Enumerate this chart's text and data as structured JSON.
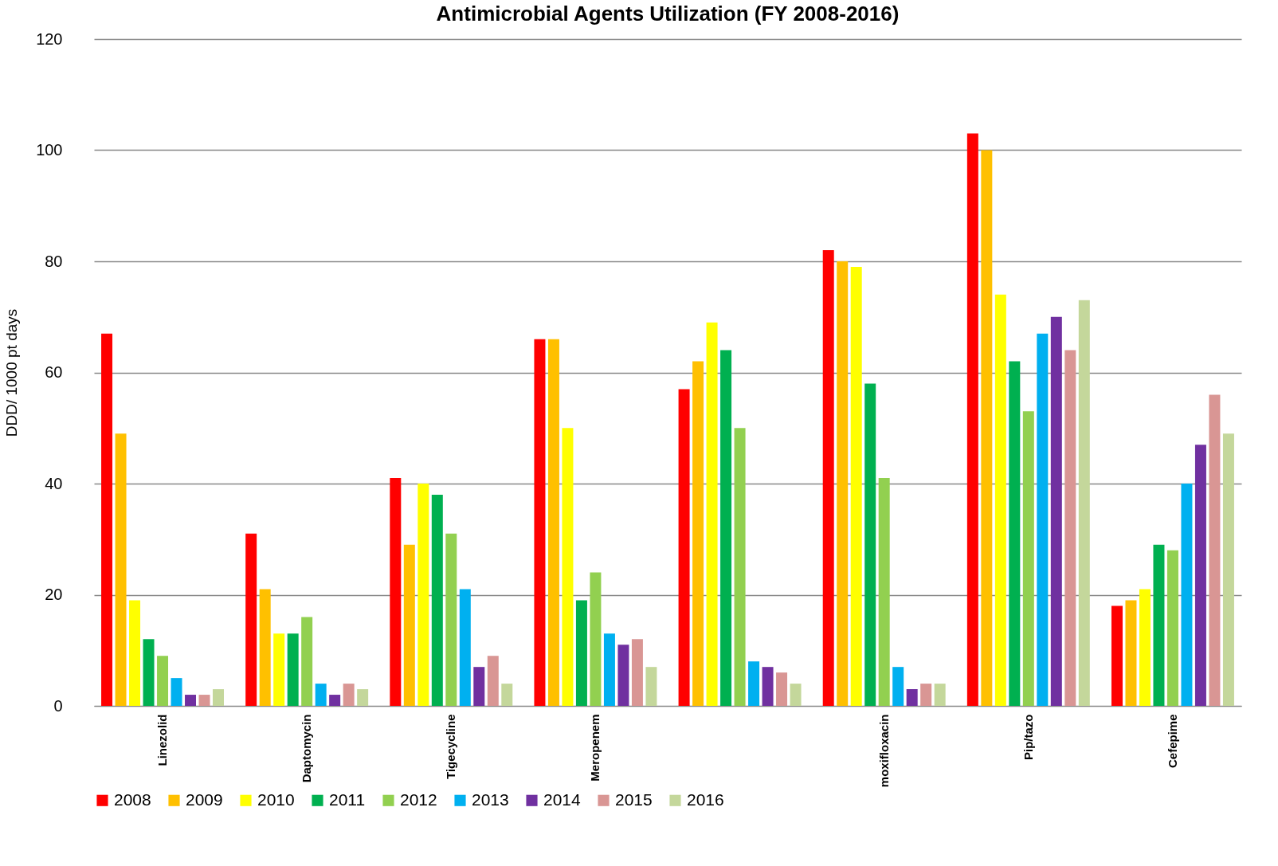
{
  "chart_data": {
    "type": "bar",
    "title": "Antimicrobial Agents Utilization (FY 2008-2016)",
    "ylabel": "DDD/ 1000 pt days",
    "categories": [
      "Linezolid",
      "Daptomycin",
      "Tigecycline",
      "Meropenem",
      null,
      "moxifloxacin",
      "Pip/tazo",
      "Cefepime"
    ],
    "series": [
      {
        "name": "2008",
        "color": "#ff0000",
        "values": [
          67,
          31,
          41,
          66,
          57,
          82,
          103,
          18
        ]
      },
      {
        "name": "2009",
        "color": "#ffc000",
        "values": [
          49,
          21,
          29,
          66,
          62,
          80,
          100,
          19
        ]
      },
      {
        "name": "2010",
        "color": "#ffff00",
        "values": [
          19,
          13,
          40,
          50,
          69,
          79,
          74,
          21
        ]
      },
      {
        "name": "2011",
        "color": "#00b050",
        "values": [
          12,
          13,
          38,
          19,
          64,
          58,
          62,
          29
        ]
      },
      {
        "name": "2012",
        "color": "#92d050",
        "values": [
          9,
          16,
          31,
          24,
          50,
          41,
          53,
          28
        ]
      },
      {
        "name": "2013",
        "color": "#00b0f0",
        "values": [
          5,
          4,
          21,
          13,
          8,
          7,
          67,
          40
        ]
      },
      {
        "name": "2014",
        "color": "#7030a0",
        "values": [
          2,
          2,
          7,
          11,
          7,
          3,
          70,
          47
        ]
      },
      {
        "name": "2015",
        "color": "#d99694",
        "values": [
          2,
          4,
          9,
          12,
          6,
          4,
          64,
          56
        ]
      },
      {
        "name": "2016",
        "color": "#c4d79b",
        "values": [
          3,
          3,
          4,
          7,
          4,
          4,
          73,
          49
        ]
      }
    ],
    "ylim": [
      0,
      120
    ],
    "yticks": [
      0,
      20,
      40,
      60,
      80,
      100,
      120
    ],
    "grid": "y",
    "legend": "bottom"
  }
}
